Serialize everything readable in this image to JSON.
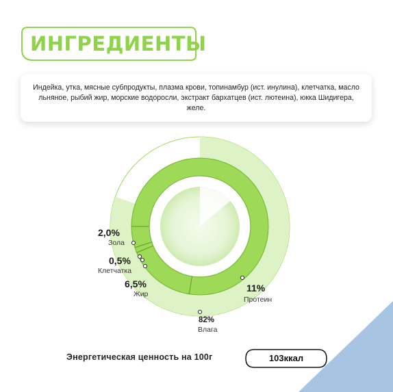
{
  "title": "ИНГРЕДИЕНТЫ",
  "ingredients": "Индейка, утка, мясные субпродукты, плазма крови, топинамбур (ист. инулина), клетчатка, масло льняное, рыбий жир, морские водоросли, экстракт бархатцев (ист. лютеина), юкка Шидигера, желе.",
  "chart_data": {
    "type": "pie",
    "categories": [
      "Влага",
      "Протеин",
      "Жир",
      "Клетчатка",
      "Зола"
    ],
    "values": [
      82,
      11,
      6.5,
      0.5,
      2.0
    ],
    "labels": [
      "82%",
      "11%",
      "6,5%",
      "0,5%",
      "2,0%"
    ]
  },
  "energy": {
    "label": "Энергетическая ценность на 100г",
    "value": "103ккал"
  },
  "colors": {
    "accent": "#8fd34a",
    "ring": "#9ed957",
    "pale": "#ddf2c5",
    "corner": "#a7c5e3"
  }
}
